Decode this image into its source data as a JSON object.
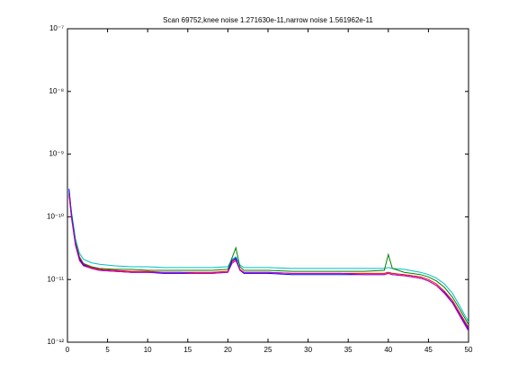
{
  "chart_data": {
    "type": "line",
    "title": "Scan 69752,knee noise 1.271630e-11,narrow noise 1.561962e-11",
    "log_y": true,
    "x": [
      0.2,
      0.5,
      1,
      1.5,
      2,
      3,
      4,
      6,
      8,
      10,
      12,
      14,
      16,
      18,
      20,
      20.5,
      21,
      21.5,
      22,
      25,
      28,
      31,
      34,
      37,
      39.5,
      40,
      40.5,
      42,
      44,
      45,
      46,
      47,
      48,
      49,
      50
    ],
    "series": [
      {
        "color": "#00bfbf",
        "values": [
          2.4e-10,
          1.2e-10,
          4.5e-11,
          2.6e-11,
          2.1e-11,
          1.85e-11,
          1.75e-11,
          1.65e-11,
          1.6e-11,
          1.6e-11,
          1.55e-11,
          1.55e-11,
          1.55e-11,
          1.55e-11,
          1.6e-11,
          2.1e-11,
          2.3e-11,
          1.7e-11,
          1.55e-11,
          1.55e-11,
          1.5e-11,
          1.5e-11,
          1.5e-11,
          1.5e-11,
          1.5e-11,
          1.55e-11,
          1.5e-11,
          1.45e-11,
          1.3e-11,
          1.2e-11,
          1.05e-11,
          8.5e-12,
          6e-12,
          3.6e-12,
          2.1e-12
        ]
      },
      {
        "color": "#008000",
        "values": [
          2.6e-10,
          1.1e-10,
          4e-11,
          2.3e-11,
          1.8e-11,
          1.6e-11,
          1.5e-11,
          1.45e-11,
          1.45e-11,
          1.4e-11,
          1.4e-11,
          1.4e-11,
          1.4e-11,
          1.4e-11,
          1.45e-11,
          2.2e-11,
          3.2e-11,
          1.6e-11,
          1.4e-11,
          1.4e-11,
          1.35e-11,
          1.35e-11,
          1.35e-11,
          1.35e-11,
          1.4e-11,
          2.5e-11,
          1.5e-11,
          1.3e-11,
          1.2e-11,
          1.1e-11,
          9.5e-12,
          7.5e-12,
          5.2e-12,
          3.2e-12,
          1.9e-12
        ]
      },
      {
        "color": "#ff0000",
        "values": [
          2.2e-10,
          1e-10,
          3.8e-11,
          2.2e-11,
          1.75e-11,
          1.55e-11,
          1.45e-11,
          1.4e-11,
          1.35e-11,
          1.35e-11,
          1.3e-11,
          1.3e-11,
          1.3e-11,
          1.3e-11,
          1.35e-11,
          1.9e-11,
          2.1e-11,
          1.45e-11,
          1.3e-11,
          1.3e-11,
          1.25e-11,
          1.25e-11,
          1.25e-11,
          1.25e-11,
          1.25e-11,
          1.3e-11,
          1.25e-11,
          1.2e-11,
          1.1e-11,
          1e-11,
          8.5e-12,
          6.5e-12,
          4.6e-12,
          2.8e-12,
          1.7e-12
        ]
      },
      {
        "color": "#0000ff",
        "values": [
          2.8e-10,
          1.05e-10,
          3.6e-11,
          2.1e-11,
          1.7e-11,
          1.5e-11,
          1.4e-11,
          1.35e-11,
          1.3e-11,
          1.3e-11,
          1.25e-11,
          1.25e-11,
          1.25e-11,
          1.25e-11,
          1.3e-11,
          2e-11,
          2.2e-11,
          1.4e-11,
          1.25e-11,
          1.25e-11,
          1.2e-11,
          1.2e-11,
          1.2e-11,
          1.2e-11,
          1.2e-11,
          1.25e-11,
          1.2e-11,
          1.15e-11,
          1.05e-11,
          9.5e-12,
          8e-12,
          6.2e-12,
          4.3e-12,
          2.6e-12,
          1.6e-12
        ]
      },
      {
        "color": "#bf00bf",
        "values": [
          2.3e-10,
          9.5e-11,
          3.5e-11,
          2e-11,
          1.65e-11,
          1.5e-11,
          1.4e-11,
          1.35e-11,
          1.3e-11,
          1.3e-11,
          1.3e-11,
          1.3e-11,
          1.25e-11,
          1.25e-11,
          1.3e-11,
          1.8e-11,
          2e-11,
          1.4e-11,
          1.3e-11,
          1.3e-11,
          1.25e-11,
          1.25e-11,
          1.25e-11,
          1.2e-11,
          1.2e-11,
          1.25e-11,
          1.2e-11,
          1.15e-11,
          1.05e-11,
          9.5e-12,
          8e-12,
          6e-12,
          4.2e-12,
          2.5e-12,
          1.5e-12
        ]
      }
    ],
    "xlim": [
      0,
      50
    ],
    "xticks": [
      0,
      5,
      10,
      15,
      20,
      25,
      30,
      35,
      40,
      45,
      50
    ],
    "ylim": [
      1e-12,
      1e-07
    ],
    "yticks": [
      {
        "value": 1e-12,
        "label": "10⁻¹²"
      },
      {
        "value": 1e-11,
        "label": "10⁻¹¹"
      },
      {
        "value": 1e-10,
        "label": "10⁻¹⁰"
      },
      {
        "value": 1e-09,
        "label": "10⁻⁹"
      },
      {
        "value": 1e-08,
        "label": "10⁻⁸"
      },
      {
        "value": 1e-07,
        "label": "10⁻⁷"
      }
    ]
  }
}
